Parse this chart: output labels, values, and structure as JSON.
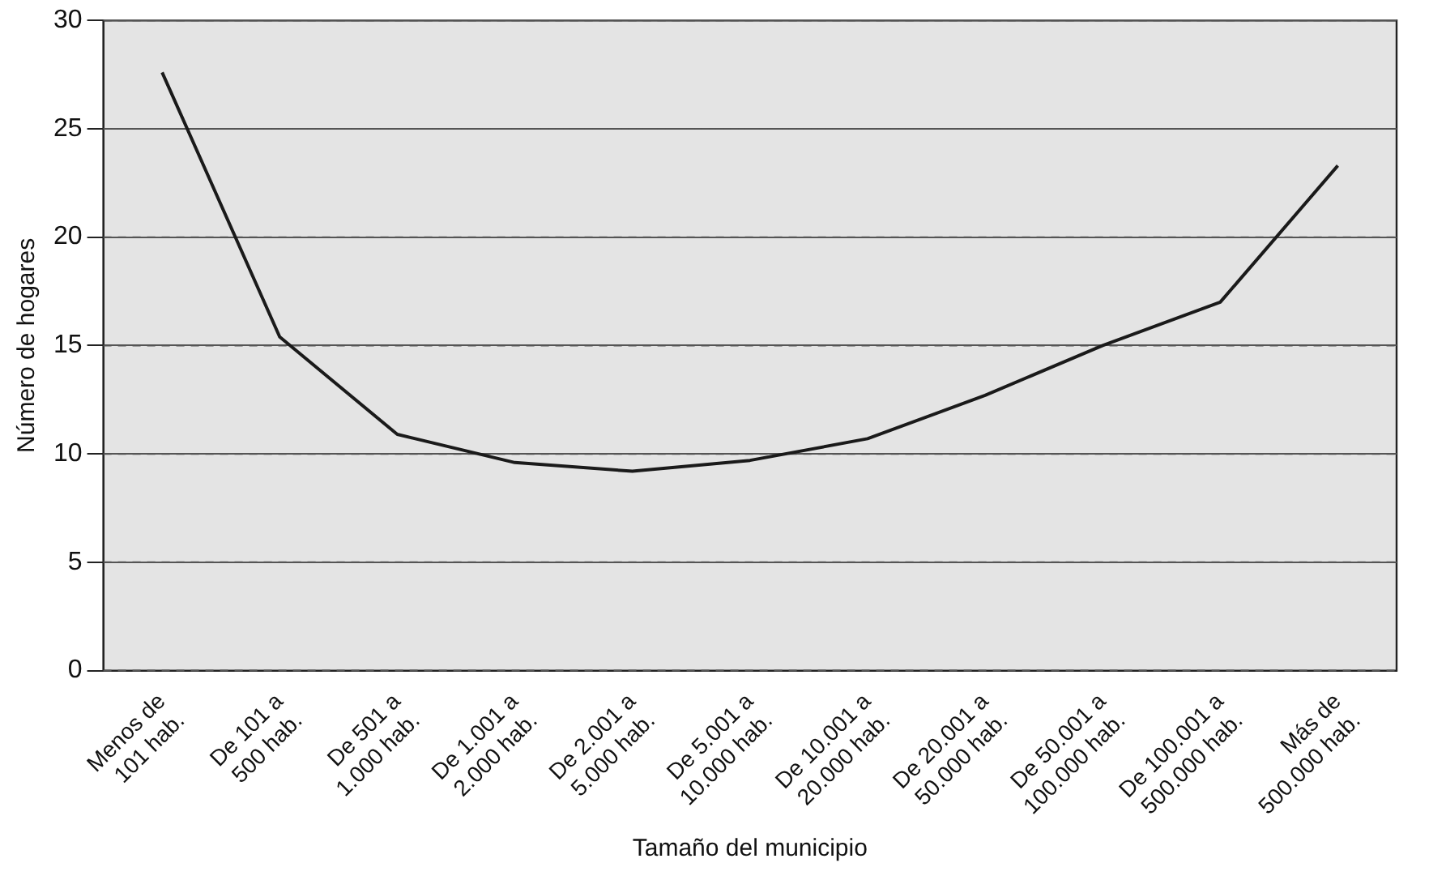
{
  "chart_data": {
    "type": "line",
    "xlabel": "Tamaño del municipio",
    "ylabel": "Número de hogares",
    "categories": [
      "Menos de\n101 hab.",
      "De 101 a\n500 hab.",
      "De 501 a\n1.000 hab.",
      "De 1.001 a\n2.000 hab.",
      "De 2.001 a\n5.000 hab.",
      "De 5.001 a\n10.000 hab.",
      "De 10.001 a\n20.000 hab.",
      "De 20.001 a\n50.000 hab.",
      "De 50.001 a\n100.000 hab.",
      "De 100.001 a\n500.000 hab.",
      "Más de\n500.000 hab."
    ],
    "series": [
      {
        "color": "#1a1a1a",
        "values": [
          27.6,
          15.4,
          10.9,
          9.6,
          9.2,
          9.7,
          10.7,
          12.7,
          15.0,
          17.0,
          23.3
        ]
      }
    ],
    "ylim": [
      0,
      30
    ],
    "yticks": [
      0,
      5,
      10,
      15,
      20,
      25,
      30
    ],
    "grid": "y",
    "legend": false,
    "marker": "none",
    "line_style": "solid"
  }
}
